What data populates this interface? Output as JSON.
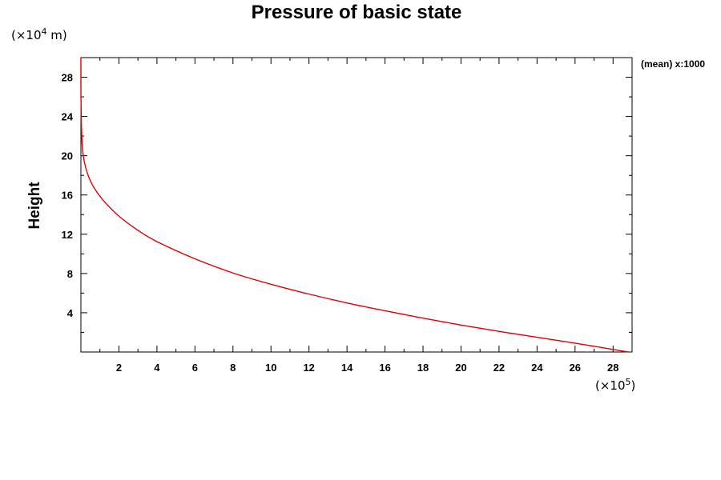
{
  "chart_data": {
    "type": "line",
    "title": "Pressure of basic state",
    "ylabel": "Height",
    "xlabel": "",
    "x_unit": {
      "prefix": "(×10",
      "exp": "5",
      "suffix": ")"
    },
    "y_unit": {
      "prefix": "(×10",
      "exp": "4",
      "suffix": " m)"
    },
    "annotation": "(mean) x:1000",
    "xlim": [
      0,
      29
    ],
    "ylim": [
      0,
      30
    ],
    "xticks_major": [
      2,
      4,
      6,
      8,
      10,
      12,
      14,
      16,
      18,
      20,
      22,
      24,
      26,
      28
    ],
    "xticks_minor": [
      1,
      3,
      5,
      7,
      9,
      11,
      13,
      15,
      17,
      19,
      21,
      23,
      25,
      27
    ],
    "yticks_major": [
      4,
      8,
      12,
      16,
      20,
      24,
      28
    ],
    "yticks_minor": [
      2,
      6,
      10,
      14,
      18,
      22,
      26
    ],
    "grid": false,
    "line_color": "#e00000",
    "series": [
      {
        "x": [
          28.8,
          26.0,
          24.0,
          22.0,
          20.0,
          18.0,
          16.0,
          14.0,
          12.0,
          10.0,
          8.0,
          6.0,
          4.0,
          3.0,
          2.0,
          1.2,
          0.7,
          0.4,
          0.2,
          0.1,
          0.05,
          0.02,
          0.0
        ],
        "y": [
          0.0,
          0.9,
          1.5,
          2.1,
          2.75,
          3.45,
          4.2,
          5.0,
          5.9,
          6.9,
          8.05,
          9.5,
          11.25,
          12.4,
          13.85,
          15.4,
          16.7,
          17.9,
          19.2,
          20.4,
          21.8,
          23.8,
          26.5
        ]
      }
    ]
  }
}
